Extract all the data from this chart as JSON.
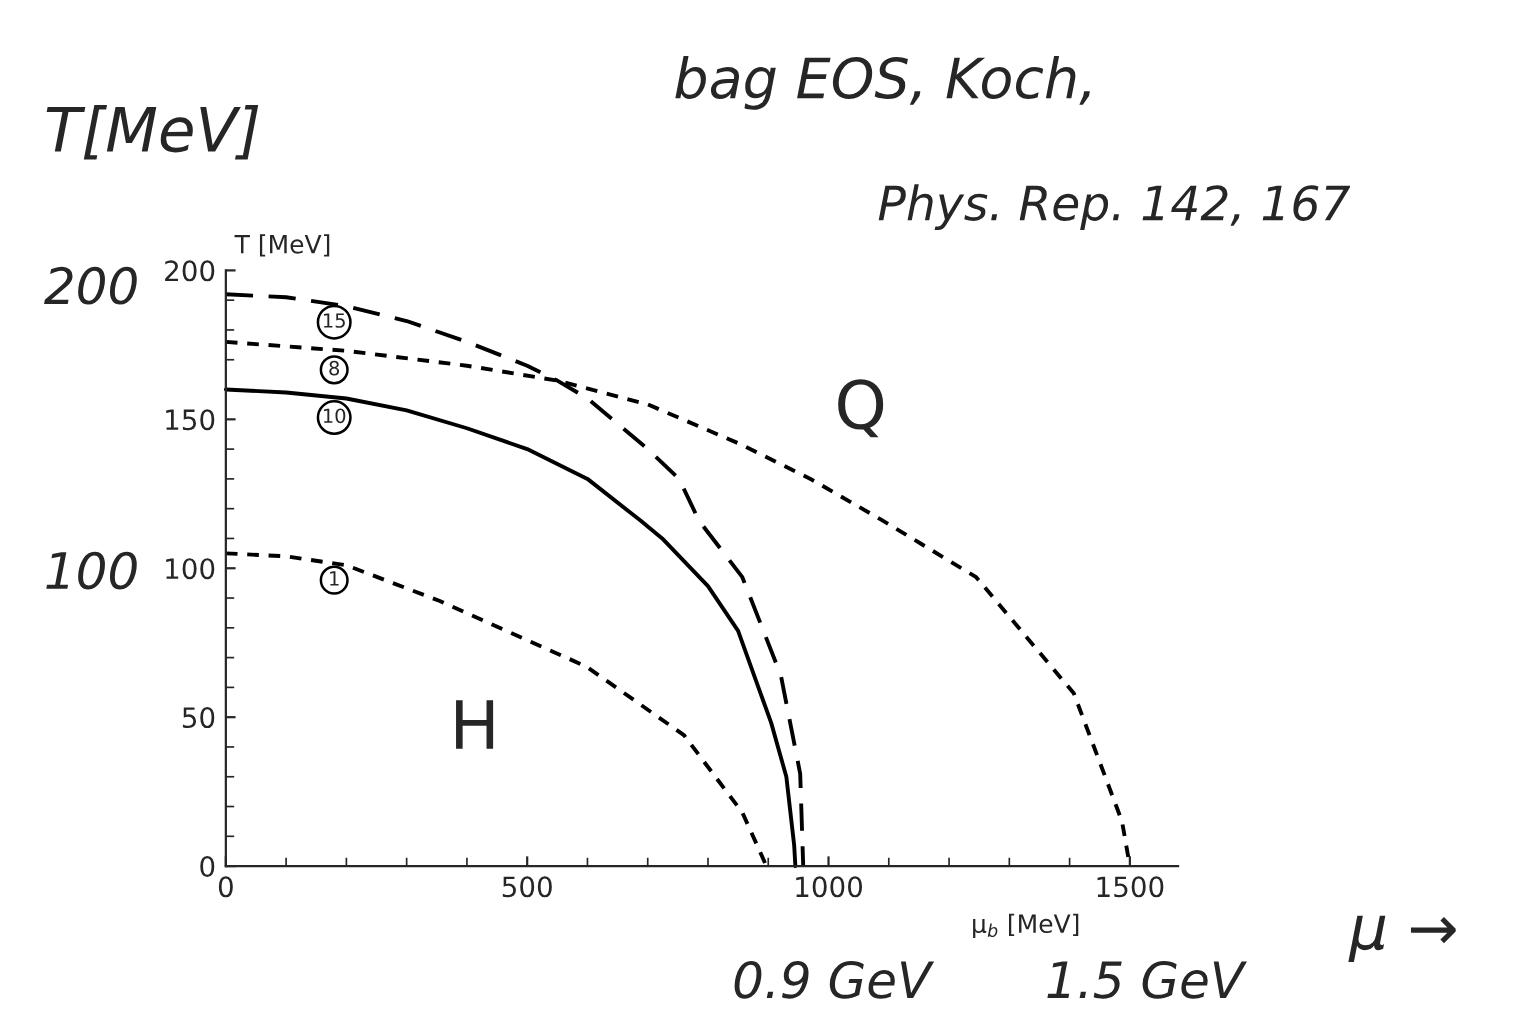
{
  "chart_data": {
    "type": "line",
    "title": "bag EOS, Koch,",
    "subtitle": "Phys. Rep. 142, 167",
    "xlabel": "μ$_{b}$ [MeV]",
    "ylabel": "T [MeV]",
    "xlim": [
      0,
      1580
    ],
    "ylim": [
      0,
      200
    ],
    "xticks": [
      0,
      500,
      1000,
      1500
    ],
    "yticks": [
      0,
      50,
      100,
      150,
      200
    ],
    "grid": false,
    "legend": false,
    "marker": "none",
    "series": [
      {
        "color": "#000000",
        "line_style": "solid",
        "x": [
          0,
          100,
          200,
          300,
          400,
          500,
          600,
          688,
          724,
          800,
          850,
          905,
          930,
          943,
          945
        ],
        "values": [
          160,
          159,
          157,
          153,
          147,
          140,
          130,
          116,
          110,
          94,
          79,
          48,
          30,
          7,
          0
        ]
      },
      {
        "color": "#000000",
        "line_style": "dashed",
        "x": [
          0,
          100,
          200,
          300,
          400,
          500,
          550,
          600,
          700,
          752,
          785,
          857,
          921,
          953,
          958
        ],
        "values": [
          192,
          191,
          188,
          183,
          176,
          168,
          163,
          157,
          140,
          130,
          116,
          97,
          64,
          31,
          0
        ]
      },
      {
        "color": "#000000",
        "line_style": "dotted",
        "x": [
          0,
          200,
          400,
          550,
          700,
          850,
          970,
          1090,
          1245,
          1407,
          1487,
          1500
        ],
        "values": [
          176,
          173,
          168,
          163,
          155,
          142,
          130,
          116,
          97,
          58,
          15,
          0
        ]
      },
      {
        "color": "#000000",
        "line_style": "dotted",
        "x": [
          0,
          100,
          200,
          355,
          598,
          760,
          857,
          897
        ],
        "values": [
          105,
          104,
          101,
          89,
          67,
          44,
          18,
          0
        ]
      }
    ],
    "annotations": [
      "15",
      "8",
      "10",
      "1",
      "T[MeV]",
      "200",
      "100",
      "0.9 GeV",
      "1.5 GeV",
      "μ →",
      "Q",
      "H"
    ]
  }
}
